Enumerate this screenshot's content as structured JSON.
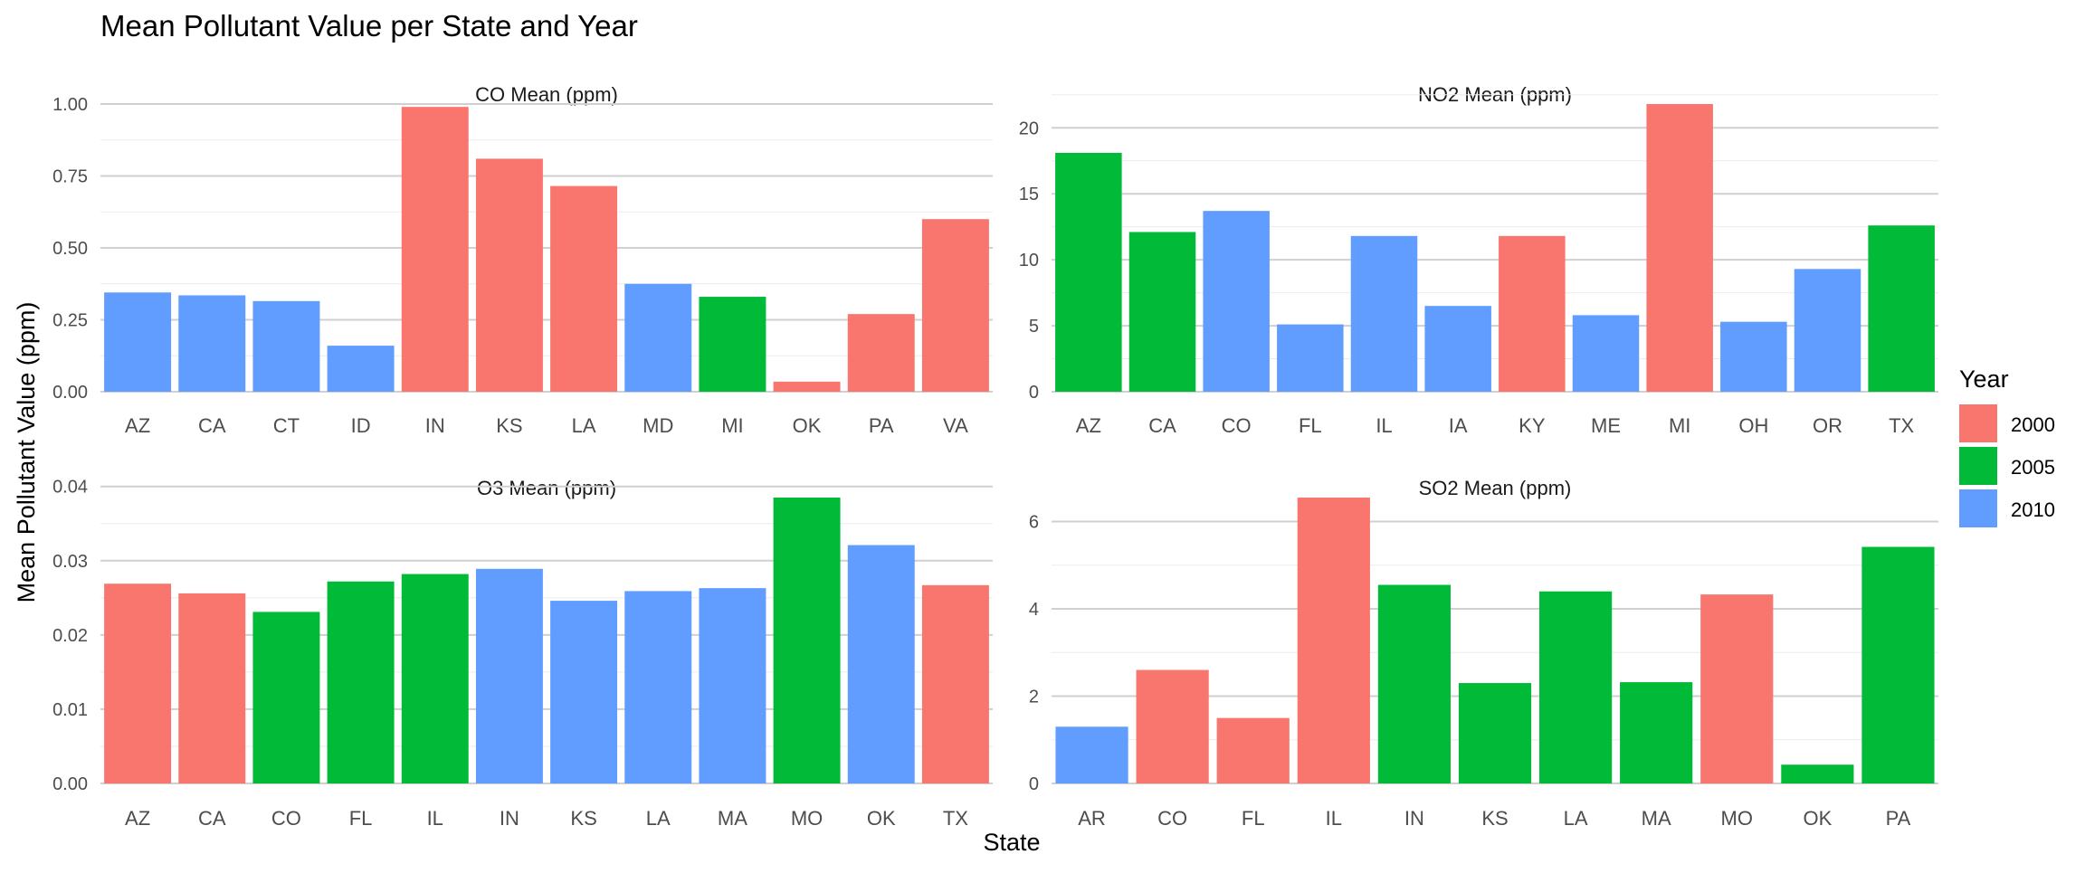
{
  "title": "Mean Pollutant Value per State and Year",
  "xlabel": "State",
  "ylabel": "Mean Pollutant Value (ppm)",
  "legend": {
    "title": "Year",
    "placement": "right",
    "items": [
      {
        "label": "2000",
        "color": "#F8766D"
      },
      {
        "label": "2005",
        "color": "#00BA38"
      },
      {
        "label": "2010",
        "color": "#619CFF"
      }
    ]
  },
  "chart_data": [
    {
      "type": "bar",
      "title": "CO Mean (ppm)",
      "categories": [
        "AZ",
        "CA",
        "CT",
        "ID",
        "IN",
        "KS",
        "LA",
        "MD",
        "MI",
        "OK",
        "PA",
        "VA"
      ],
      "values": [
        0.345,
        0.335,
        0.315,
        0.16,
        0.99,
        0.81,
        0.715,
        0.375,
        0.33,
        0.035,
        0.27,
        0.6
      ],
      "years": [
        "2010",
        "2010",
        "2010",
        "2010",
        "2000",
        "2000",
        "2000",
        "2010",
        "2005",
        "2000",
        "2000",
        "2000"
      ],
      "ylim": [
        0,
        1.0
      ],
      "yticks": [
        0,
        0.25,
        0.5,
        0.75,
        1.0
      ],
      "ytick_labels": [
        "0.00",
        "0.25",
        "0.50",
        "0.75",
        "1.00"
      ],
      "grid": true
    },
    {
      "type": "bar",
      "title": "NO2 Mean (ppm)",
      "categories": [
        "AZ",
        "CA",
        "CO",
        "FL",
        "IL",
        "IA",
        "KY",
        "ME",
        "MI",
        "OH",
        "OR",
        "TX"
      ],
      "values": [
        18.1,
        12.1,
        13.7,
        5.1,
        11.8,
        6.5,
        11.8,
        5.8,
        21.8,
        5.3,
        9.3,
        12.6
      ],
      "years": [
        "2005",
        "2005",
        "2010",
        "2010",
        "2010",
        "2010",
        "2000",
        "2010",
        "2000",
        "2010",
        "2010",
        "2005"
      ],
      "ylim": [
        0,
        21.8
      ],
      "yticks": [
        0,
        5,
        10,
        15,
        20
      ],
      "ytick_labels": [
        "0",
        "5",
        "10",
        "15",
        "20"
      ],
      "grid": true
    },
    {
      "type": "bar",
      "title": "O3 Mean (ppm)",
      "categories": [
        "AZ",
        "CA",
        "CO",
        "FL",
        "IL",
        "IN",
        "KS",
        "LA",
        "MA",
        "MO",
        "OK",
        "TX"
      ],
      "values": [
        0.0269,
        0.0256,
        0.0231,
        0.0272,
        0.0282,
        0.0289,
        0.0246,
        0.0259,
        0.0263,
        0.0385,
        0.0321,
        0.0267
      ],
      "years": [
        "2000",
        "2000",
        "2005",
        "2005",
        "2005",
        "2010",
        "2010",
        "2010",
        "2010",
        "2005",
        "2010",
        "2000"
      ],
      "ylim": [
        0,
        0.0385
      ],
      "yticks": [
        0,
        0.01,
        0.02,
        0.03,
        0.04
      ],
      "ytick_labels": [
        "0.00",
        "0.01",
        "0.02",
        "0.03",
        "0.04"
      ],
      "grid": true
    },
    {
      "type": "bar",
      "title": "SO2 Mean (ppm)",
      "categories": [
        "AR",
        "CO",
        "FL",
        "IL",
        "IN",
        "KS",
        "LA",
        "MA",
        "MO",
        "OK",
        "PA"
      ],
      "values": [
        1.3,
        2.6,
        1.5,
        6.55,
        4.55,
        2.3,
        4.4,
        2.32,
        4.33,
        0.43,
        5.42
      ],
      "years": [
        "2010",
        "2000",
        "2000",
        "2000",
        "2005",
        "2005",
        "2005",
        "2005",
        "2000",
        "2005",
        "2005"
      ],
      "ylim": [
        0,
        6.55
      ],
      "yticks": [
        0,
        2,
        4,
        6
      ],
      "ytick_labels": [
        "0",
        "2",
        "4",
        "6"
      ],
      "grid": true
    }
  ]
}
